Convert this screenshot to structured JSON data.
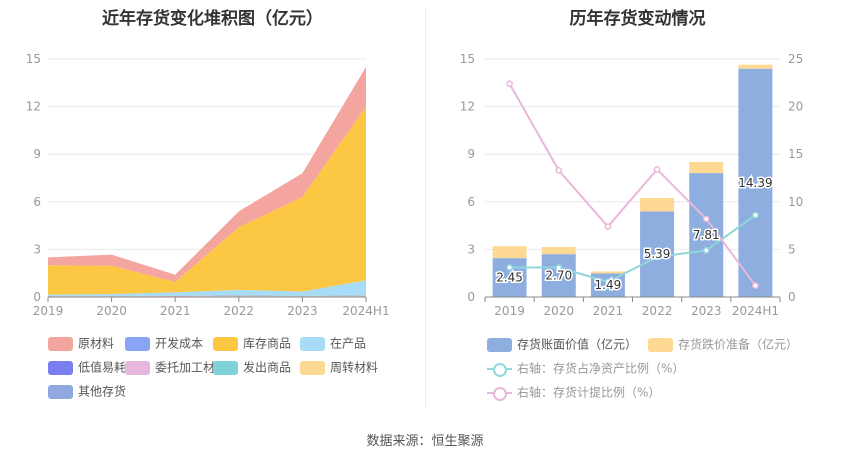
{
  "source_note": "数据来源：恒生聚源",
  "chart_data": [
    {
      "type": "area",
      "title": "近年存货变化堆积图（亿元）",
      "categories": [
        "2019",
        "2020",
        "2021",
        "2022",
        "2023",
        "2024H1"
      ],
      "ylim": [
        0,
        15
      ],
      "yticks": [
        "0",
        "3",
        "6",
        "9",
        "12",
        "15"
      ],
      "stack_order": [
        "其他存货",
        "委托加工材料",
        "发出商品",
        "在产品",
        "库存商品",
        "周转材料",
        "低值易耗品",
        "开发成本",
        "原材料"
      ],
      "series": [
        {
          "name": "原材料",
          "color": "#f4a59f",
          "values": [
            0.5,
            0.7,
            0.45,
            1.0,
            1.5,
            2.5
          ]
        },
        {
          "name": "开发成本",
          "color": "#8aa4f5",
          "values": [
            0,
            0,
            0,
            0,
            0,
            0
          ]
        },
        {
          "name": "库存商品",
          "color": "#fcc843",
          "values": [
            1.85,
            1.78,
            0.65,
            3.95,
            5.95,
            10.95
          ]
        },
        {
          "name": "在产品",
          "color": "#a6dcf7",
          "values": [
            0.08,
            0.1,
            0.22,
            0.3,
            0.25,
            0.9
          ]
        },
        {
          "name": "低值易耗品",
          "color": "#7b7ef0",
          "values": [
            0,
            0,
            0,
            0,
            0,
            0
          ]
        },
        {
          "name": "委托加工材料",
          "color": "#e7b6dc",
          "values": [
            0.02,
            0.02,
            0.03,
            0.05,
            0.02,
            0.05
          ]
        },
        {
          "name": "发出商品",
          "color": "#7fd3d8",
          "values": [
            0.02,
            0.02,
            0.02,
            0.05,
            0.03,
            0.05
          ]
        },
        {
          "name": "周转材料",
          "color": "#fdd993",
          "values": [
            0,
            0,
            0,
            0,
            0,
            0
          ]
        },
        {
          "name": "其他存货",
          "color": "#8fa8e0",
          "values": [
            0.03,
            0.05,
            0.03,
            0.05,
            0.05,
            0.05
          ]
        }
      ]
    },
    {
      "type": "bar",
      "title": "历年存货变动情况",
      "categories": [
        "2019",
        "2020",
        "2021",
        "2022",
        "2023",
        "2024H1"
      ],
      "ylim_left": [
        0,
        15
      ],
      "ylim_right": [
        0,
        25
      ],
      "yticks_left": [
        "0",
        "3",
        "6",
        "9",
        "12",
        "15"
      ],
      "yticks_right": [
        "0",
        "5",
        "10",
        "15",
        "20",
        "25"
      ],
      "bar_series": [
        {
          "name": "存货账面价值（亿元）",
          "color": "#8eaee0",
          "values": [
            2.45,
            2.7,
            1.49,
            5.39,
            7.81,
            14.39
          ],
          "labels": [
            "2.45",
            "2.70",
            "1.49",
            "5.39",
            "7.81",
            "14.39"
          ]
        },
        {
          "name": "存货跌价准备（亿元）",
          "color": "#fdd993",
          "values": [
            0.75,
            0.45,
            0.12,
            0.85,
            0.7,
            0.25
          ]
        }
      ],
      "line_series": [
        {
          "name": "右轴：存货占净资产比例（%）",
          "color": "#8fd7d9",
          "values": [
            3.1,
            3.1,
            1.6,
            4.2,
            4.9,
            8.6
          ]
        },
        {
          "name": "右轴：存货计提比例（%）",
          "color": "#e9b8d9",
          "values": [
            22.4,
            13.3,
            7.4,
            13.4,
            8.2,
            1.2
          ]
        }
      ]
    }
  ]
}
